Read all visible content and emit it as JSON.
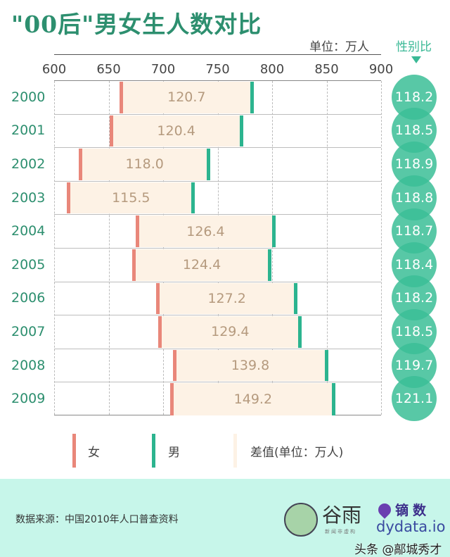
{
  "header": {
    "title": "\"00后\"男女生人数对比",
    "unit_label": "单位：万人",
    "ratio_header": "性别比"
  },
  "axis": {
    "ticks": [
      "600",
      "650",
      "700",
      "750",
      "800",
      "850",
      "900"
    ]
  },
  "rows": [
    {
      "year": "2000",
      "diff": "120.7",
      "ratio": "118.2"
    },
    {
      "year": "2001",
      "diff": "120.4",
      "ratio": "118.5"
    },
    {
      "year": "2002",
      "diff": "118.0",
      "ratio": "118.9"
    },
    {
      "year": "2003",
      "diff": "115.5",
      "ratio": "118.8"
    },
    {
      "year": "2004",
      "diff": "126.4",
      "ratio": "118.7"
    },
    {
      "year": "2005",
      "diff": "124.4",
      "ratio": "118.4"
    },
    {
      "year": "2006",
      "diff": "127.2",
      "ratio": "118.2"
    },
    {
      "year": "2007",
      "diff": "129.4",
      "ratio": "118.5"
    },
    {
      "year": "2008",
      "diff": "139.8",
      "ratio": "119.7"
    },
    {
      "year": "2009",
      "diff": "149.2",
      "ratio": "121.1"
    }
  ],
  "legend": {
    "female": "女",
    "male": "男",
    "diff": "差值(单位：万人)"
  },
  "footer": {
    "source": "数据来源：中国2010年人口普查资料",
    "logo_guyu": "谷雨",
    "logo_guyu_sub": "新闻非虚构",
    "logo_dy": "镝数",
    "logo_dy_url": "dydata.io",
    "watermark": "头条 @鄗城秀才"
  },
  "colors": {
    "female": "#e9877a",
    "male": "#2cb48f",
    "diff": "#fdf2e5",
    "ratio_circle": "#3bbe96",
    "title": "#2d8f6f",
    "footer_bg": "#c7f6ea"
  },
  "chart_data": {
    "type": "bar",
    "title": "\"00后\"男女生人数对比",
    "subtitle": "单位：万人",
    "xlabel": "",
    "ylabel": "",
    "xlim": [
      600,
      900
    ],
    "x_ticks": [
      600,
      650,
      700,
      750,
      800,
      850,
      900
    ],
    "grid": true,
    "orientation": "horizontal range (dumbbell)",
    "categories": [
      "2000",
      "2001",
      "2002",
      "2003",
      "2004",
      "2005",
      "2006",
      "2007",
      "2008",
      "2009"
    ],
    "series": [
      {
        "name": "女",
        "values": [
          661,
          652,
          624,
          613,
          676,
          673,
          695,
          697,
          710,
          708
        ]
      },
      {
        "name": "男",
        "values": [
          782,
          772,
          742,
          728,
          802,
          798,
          822,
          826,
          850,
          857
        ]
      },
      {
        "name": "差值(单位：万人)",
        "values": [
          120.7,
          120.4,
          118.0,
          115.5,
          126.4,
          124.4,
          127.2,
          129.4,
          139.8,
          149.2
        ]
      },
      {
        "name": "性别比",
        "values": [
          118.2,
          118.5,
          118.9,
          118.8,
          118.7,
          118.4,
          118.2,
          118.5,
          119.7,
          121.1
        ]
      }
    ],
    "legend": [
      "女",
      "男",
      "差值(单位：万人)"
    ],
    "legend_position": "bottom",
    "annotations": [
      "数据来源：中国2010年人口普查资料"
    ]
  }
}
